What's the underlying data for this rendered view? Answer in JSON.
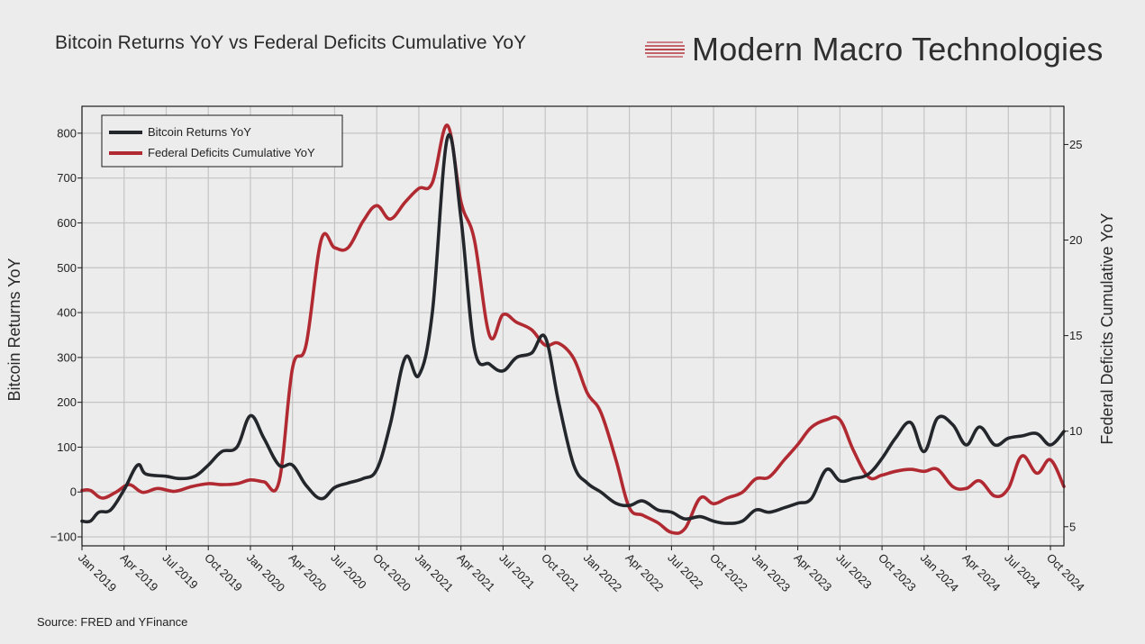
{
  "header": {
    "title": "Bitcoin Returns YoY vs Federal Deficits Cumulative YoY",
    "brand": "Modern Macro Technologies"
  },
  "footer": {
    "source": "Source: FRED and YFinance"
  },
  "colors": {
    "bitcoin": "#23262b",
    "deficits": "#b12a32",
    "grid": "#c4c4c4",
    "background": "#ececec"
  },
  "chart_data": {
    "type": "line",
    "title": "Bitcoin Returns YoY vs Federal Deficits Cumulative YoY",
    "ylabel": "Bitcoin Returns YoY",
    "y2label": "Federal Deficits Cumulative YoY",
    "ylim": [
      -120,
      860
    ],
    "y2lim": [
      4.0,
      27.0
    ],
    "yticks": [
      -100,
      0,
      100,
      200,
      300,
      400,
      500,
      600,
      700,
      800
    ],
    "y2ticks": [
      5,
      10,
      15,
      20,
      25
    ],
    "xlim": [
      2019.0,
      2024.83
    ],
    "xticks": [
      {
        "label": "Jan 2019",
        "x": 2019.0
      },
      {
        "label": "Apr 2019",
        "x": 2019.25
      },
      {
        "label": "Jul 2019",
        "x": 2019.5
      },
      {
        "label": "Oct 2019",
        "x": 2019.75
      },
      {
        "label": "Jan 2020",
        "x": 2020.0
      },
      {
        "label": "Apr 2020",
        "x": 2020.25
      },
      {
        "label": "Jul 2020",
        "x": 2020.5
      },
      {
        "label": "Oct 2020",
        "x": 2020.75
      },
      {
        "label": "Jan 2021",
        "x": 2021.0
      },
      {
        "label": "Apr 2021",
        "x": 2021.25
      },
      {
        "label": "Jul 2021",
        "x": 2021.5
      },
      {
        "label": "Oct 2021",
        "x": 2021.75
      },
      {
        "label": "Jan 2022",
        "x": 2022.0
      },
      {
        "label": "Apr 2022",
        "x": 2022.25
      },
      {
        "label": "Jul 2022",
        "x": 2022.5
      },
      {
        "label": "Oct 2022",
        "x": 2022.75
      },
      {
        "label": "Jan 2023",
        "x": 2023.0
      },
      {
        "label": "Apr 2023",
        "x": 2023.25
      },
      {
        "label": "Jul 2023",
        "x": 2023.5
      },
      {
        "label": "Oct 2023",
        "x": 2023.75
      },
      {
        "label": "Jan 2024",
        "x": 2024.0
      },
      {
        "label": "Apr 2024",
        "x": 2024.25
      },
      {
        "label": "Jul 2024",
        "x": 2024.5
      },
      {
        "label": "Oct 2024",
        "x": 2024.75
      }
    ],
    "grid": true,
    "legend_position": "top-left",
    "series": [
      {
        "name": "Bitcoin Returns YoY",
        "axis": "left",
        "color": "#23262b",
        "points": [
          [
            2019.0,
            -65
          ],
          [
            2019.05,
            -65
          ],
          [
            2019.1,
            -45
          ],
          [
            2019.17,
            -40
          ],
          [
            2019.25,
            5
          ],
          [
            2019.33,
            60
          ],
          [
            2019.38,
            40
          ],
          [
            2019.5,
            35
          ],
          [
            2019.58,
            30
          ],
          [
            2019.67,
            35
          ],
          [
            2019.75,
            60
          ],
          [
            2019.83,
            90
          ],
          [
            2019.92,
            100
          ],
          [
            2020.0,
            170
          ],
          [
            2020.08,
            120
          ],
          [
            2020.17,
            60
          ],
          [
            2020.25,
            60
          ],
          [
            2020.33,
            15
          ],
          [
            2020.42,
            -15
          ],
          [
            2020.5,
            10
          ],
          [
            2020.58,
            20
          ],
          [
            2020.67,
            30
          ],
          [
            2020.75,
            50
          ],
          [
            2020.83,
            150
          ],
          [
            2020.92,
            300
          ],
          [
            2021.0,
            260
          ],
          [
            2021.08,
            400
          ],
          [
            2021.17,
            790
          ],
          [
            2021.25,
            610
          ],
          [
            2021.33,
            320
          ],
          [
            2021.42,
            285
          ],
          [
            2021.5,
            270
          ],
          [
            2021.58,
            300
          ],
          [
            2021.67,
            310
          ],
          [
            2021.75,
            345
          ],
          [
            2021.83,
            200
          ],
          [
            2021.92,
            60
          ],
          [
            2022.0,
            20
          ],
          [
            2022.08,
            0
          ],
          [
            2022.17,
            -25
          ],
          [
            2022.25,
            -30
          ],
          [
            2022.33,
            -20
          ],
          [
            2022.42,
            -40
          ],
          [
            2022.5,
            -45
          ],
          [
            2022.58,
            -60
          ],
          [
            2022.67,
            -55
          ],
          [
            2022.75,
            -65
          ],
          [
            2022.83,
            -70
          ],
          [
            2022.92,
            -65
          ],
          [
            2023.0,
            -40
          ],
          [
            2023.08,
            -45
          ],
          [
            2023.17,
            -35
          ],
          [
            2023.25,
            -25
          ],
          [
            2023.33,
            -15
          ],
          [
            2023.42,
            50
          ],
          [
            2023.5,
            25
          ],
          [
            2023.58,
            30
          ],
          [
            2023.67,
            40
          ],
          [
            2023.75,
            75
          ],
          [
            2023.83,
            120
          ],
          [
            2023.92,
            155
          ],
          [
            2024.0,
            90
          ],
          [
            2024.08,
            165
          ],
          [
            2024.17,
            150
          ],
          [
            2024.25,
            105
          ],
          [
            2024.33,
            145
          ],
          [
            2024.42,
            105
          ],
          [
            2024.5,
            120
          ],
          [
            2024.58,
            125
          ],
          [
            2024.67,
            130
          ],
          [
            2024.75,
            105
          ],
          [
            2024.83,
            135
          ]
        ]
      },
      {
        "name": "Federal Deficits Cumulative YoY",
        "axis": "right",
        "color": "#b12a32",
        "points": [
          [
            2019.0,
            6.9
          ],
          [
            2019.05,
            6.9
          ],
          [
            2019.12,
            6.5
          ],
          [
            2019.2,
            6.8
          ],
          [
            2019.28,
            7.2
          ],
          [
            2019.36,
            6.8
          ],
          [
            2019.45,
            7.0
          ],
          [
            2019.55,
            6.85
          ],
          [
            2019.65,
            7.1
          ],
          [
            2019.75,
            7.25
          ],
          [
            2019.83,
            7.2
          ],
          [
            2019.92,
            7.25
          ],
          [
            2020.0,
            7.45
          ],
          [
            2020.08,
            7.35
          ],
          [
            2020.17,
            7.35
          ],
          [
            2020.25,
            13.3
          ],
          [
            2020.33,
            14.5
          ],
          [
            2020.42,
            20.0
          ],
          [
            2020.5,
            19.6
          ],
          [
            2020.58,
            19.6
          ],
          [
            2020.67,
            21.0
          ],
          [
            2020.75,
            21.8
          ],
          [
            2020.83,
            21.1
          ],
          [
            2020.92,
            22.0
          ],
          [
            2021.0,
            22.7
          ],
          [
            2021.08,
            23.0
          ],
          [
            2021.17,
            26.0
          ],
          [
            2021.25,
            22.0
          ],
          [
            2021.33,
            20.0
          ],
          [
            2021.42,
            15.0
          ],
          [
            2021.5,
            16.1
          ],
          [
            2021.58,
            15.7
          ],
          [
            2021.67,
            15.3
          ],
          [
            2021.75,
            14.5
          ],
          [
            2021.83,
            14.6
          ],
          [
            2021.92,
            13.8
          ],
          [
            2022.0,
            12.0
          ],
          [
            2022.08,
            11.0
          ],
          [
            2022.17,
            8.5
          ],
          [
            2022.25,
            6.0
          ],
          [
            2022.33,
            5.6
          ],
          [
            2022.42,
            5.2
          ],
          [
            2022.5,
            4.7
          ],
          [
            2022.58,
            4.9
          ],
          [
            2022.67,
            6.5
          ],
          [
            2022.75,
            6.2
          ],
          [
            2022.83,
            6.5
          ],
          [
            2022.92,
            6.8
          ],
          [
            2023.0,
            7.5
          ],
          [
            2023.08,
            7.6
          ],
          [
            2023.17,
            8.5
          ],
          [
            2023.25,
            9.3
          ],
          [
            2023.33,
            10.2
          ],
          [
            2023.42,
            10.6
          ],
          [
            2023.5,
            10.6
          ],
          [
            2023.58,
            9.0
          ],
          [
            2023.67,
            7.6
          ],
          [
            2023.75,
            7.7
          ],
          [
            2023.83,
            7.9
          ],
          [
            2023.92,
            8.0
          ],
          [
            2024.0,
            7.9
          ],
          [
            2024.08,
            8.0
          ],
          [
            2024.17,
            7.1
          ],
          [
            2024.25,
            7.0
          ],
          [
            2024.33,
            7.4
          ],
          [
            2024.42,
            6.6
          ],
          [
            2024.5,
            7.0
          ],
          [
            2024.58,
            8.7
          ],
          [
            2024.67,
            7.8
          ],
          [
            2024.75,
            8.5
          ],
          [
            2024.83,
            7.1
          ]
        ]
      }
    ]
  }
}
